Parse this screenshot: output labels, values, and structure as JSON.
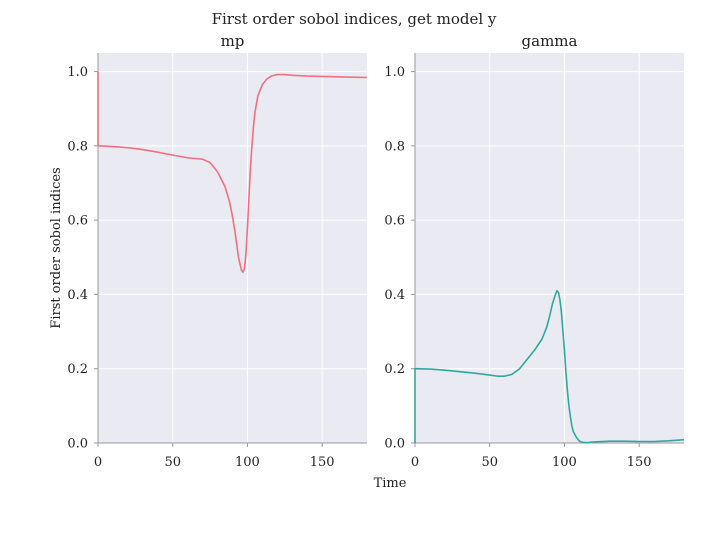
{
  "chart_data": {
    "suptitle": "First order sobol indices, get model y",
    "xlabel": "Time",
    "ylabel": "First order sobol indices",
    "colors": {
      "background": "#eaeaf2",
      "grid": "#ffffff",
      "axis": "#999999"
    },
    "panels": [
      {
        "type": "line",
        "title": "mp",
        "color": "#f07080",
        "xlim": [
          0,
          180
        ],
        "ylim": [
          0,
          1.05
        ],
        "xticks": [
          0,
          50,
          100,
          150
        ],
        "yticks": [
          "0.0",
          "0.2",
          "0.4",
          "0.6",
          "0.8",
          "1.0"
        ],
        "x": [
          0,
          0,
          0.5,
          10,
          20,
          30,
          40,
          50,
          60,
          65,
          70,
          75,
          80,
          85,
          88,
          90,
          92,
          94,
          96,
          97,
          98,
          99,
          100,
          101,
          102,
          103,
          104,
          105,
          107,
          110,
          113,
          116,
          120,
          125,
          130,
          140,
          150,
          160,
          170,
          180
        ],
        "y": [
          1.0,
          0.8,
          0.8,
          0.798,
          0.795,
          0.79,
          0.783,
          0.775,
          0.768,
          0.766,
          0.764,
          0.755,
          0.73,
          0.69,
          0.65,
          0.61,
          0.56,
          0.5,
          0.465,
          0.46,
          0.47,
          0.51,
          0.58,
          0.66,
          0.74,
          0.8,
          0.85,
          0.89,
          0.935,
          0.965,
          0.98,
          0.988,
          0.992,
          0.992,
          0.99,
          0.988,
          0.987,
          0.986,
          0.985,
          0.984
        ]
      },
      {
        "type": "line",
        "title": "gamma",
        "color": "#30a8a0",
        "xlim": [
          0,
          180
        ],
        "ylim": [
          0,
          1.05
        ],
        "xticks": [
          0,
          50,
          100,
          150
        ],
        "yticks": [
          "0.0",
          "0.2",
          "0.4",
          "0.6",
          "0.8",
          "1.0"
        ],
        "x": [
          0,
          0,
          0.5,
          10,
          20,
          30,
          40,
          50,
          55,
          60,
          65,
          70,
          75,
          80,
          85,
          88,
          90,
          92,
          94,
          95,
          96,
          97,
          98,
          99,
          100,
          101,
          102,
          103,
          104,
          105,
          106,
          108,
          110,
          112,
          115,
          120,
          130,
          140,
          150,
          160,
          170,
          180
        ],
        "y": [
          0,
          0.2,
          0.2,
          0.199,
          0.196,
          0.192,
          0.188,
          0.183,
          0.18,
          0.18,
          0.185,
          0.2,
          0.225,
          0.25,
          0.28,
          0.31,
          0.34,
          0.375,
          0.4,
          0.41,
          0.405,
          0.385,
          0.35,
          0.3,
          0.25,
          0.19,
          0.14,
          0.1,
          0.07,
          0.045,
          0.03,
          0.015,
          0.005,
          0.002,
          0.001,
          0.003,
          0.005,
          0.005,
          0.004,
          0.004,
          0.006,
          0.009
        ]
      }
    ]
  }
}
